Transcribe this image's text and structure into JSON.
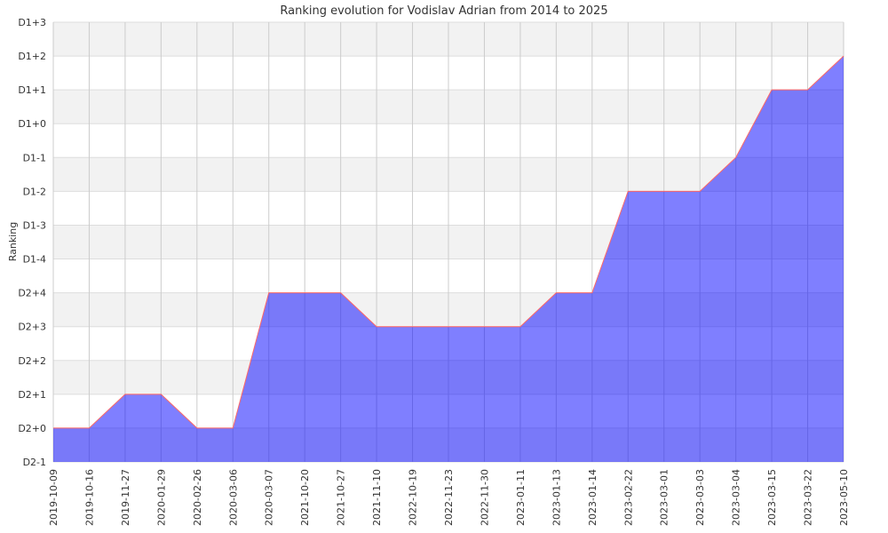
{
  "chart_data": {
    "type": "area",
    "title": "Ranking evolution for Vodislav Adrian from 2014 to 2025",
    "xlabel": "",
    "ylabel": "Ranking",
    "y_categories": [
      "D2-1",
      "D2+0",
      "D2+1",
      "D2+2",
      "D2+3",
      "D2+4",
      "D1-4",
      "D1-3",
      "D1-2",
      "D1-1",
      "D1+0",
      "D1+1",
      "D1+2",
      "D1+3"
    ],
    "x": [
      "2019-10-09",
      "2019-10-16",
      "2019-11-27",
      "2020-01-29",
      "2020-02-26",
      "2020-03-06",
      "2020-03-07",
      "2021-10-20",
      "2021-10-27",
      "2021-11-10",
      "2022-10-19",
      "2022-11-23",
      "2022-11-30",
      "2023-01-11",
      "2023-01-13",
      "2023-01-14",
      "2023-02-22",
      "2023-03-01",
      "2023-03-03",
      "2023-03-04",
      "2023-03-15",
      "2023-03-22",
      "2023-05-10"
    ],
    "series": [
      {
        "values": [
          "D2+0",
          "D2+0",
          "D2+1",
          "D2+1",
          "D2+0",
          "D2+0",
          "D2+4",
          "D2+4",
          "D2+4",
          "D2+3",
          "D2+3",
          "D2+3",
          "D2+3",
          "D2+3",
          "D2+4",
          "D2+4",
          "D1-2",
          "D1-2",
          "D1-2",
          "D1-1",
          "D1+1",
          "D1+1",
          "D1+2"
        ]
      }
    ],
    "grid": true,
    "alternating_bands": true,
    "colors": {
      "area": "#0000ff",
      "line": "#ff6666",
      "band": "#f2f2f2",
      "grid": "#dddddd"
    }
  }
}
